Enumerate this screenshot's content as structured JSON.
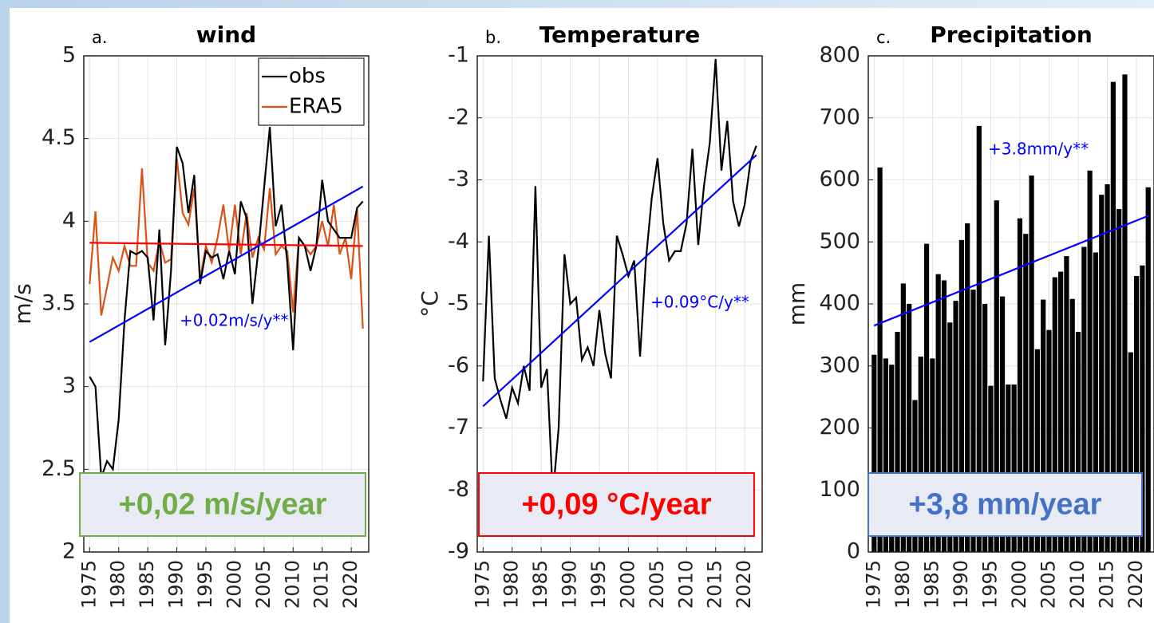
{
  "chart_data": [
    {
      "type": "line",
      "panel_label": "a.",
      "title": "wind",
      "ylabel": "m/s",
      "x": [
        1975,
        1976,
        1977,
        1978,
        1979,
        1980,
        1981,
        1982,
        1983,
        1984,
        1985,
        1986,
        1987,
        1988,
        1989,
        1990,
        1991,
        1992,
        1993,
        1994,
        1995,
        1996,
        1997,
        1998,
        1999,
        2000,
        2001,
        2002,
        2003,
        2004,
        2005,
        2006,
        2007,
        2008,
        2009,
        2010,
        2011,
        2012,
        2013,
        2014,
        2015,
        2016,
        2017,
        2018,
        2019,
        2020,
        2021,
        2022
      ],
      "series": [
        {
          "name": "obs",
          "color": "#000000",
          "values": [
            3.06,
            3.0,
            2.45,
            2.55,
            2.5,
            2.8,
            3.4,
            3.82,
            3.8,
            3.82,
            3.78,
            3.4,
            3.95,
            3.25,
            3.7,
            4.45,
            4.35,
            4.05,
            4.28,
            3.62,
            3.82,
            3.78,
            3.8,
            3.65,
            3.82,
            3.68,
            4.12,
            4.02,
            3.5,
            3.82,
            4.2,
            4.57,
            3.97,
            4.1,
            3.75,
            3.22,
            3.9,
            3.85,
            3.7,
            3.85,
            4.25,
            4.0,
            3.95,
            3.9,
            3.9,
            3.9,
            4.08,
            4.12
          ]
        },
        {
          "name": "ERA5",
          "color": "#d95319",
          "values": [
            3.62,
            4.06,
            3.43,
            3.6,
            3.78,
            3.7,
            3.85,
            3.73,
            3.73,
            4.32,
            3.75,
            3.7,
            3.88,
            3.75,
            3.77,
            4.38,
            4.05,
            3.98,
            4.2,
            3.65,
            3.85,
            3.75,
            3.9,
            4.1,
            3.82,
            4.1,
            3.8,
            4.05,
            3.78,
            3.9,
            3.83,
            4.2,
            3.8,
            3.85,
            3.82,
            3.45,
            3.9,
            3.85,
            3.8,
            3.85,
            4.0,
            3.85,
            4.1,
            3.8,
            3.9,
            3.65,
            4.08,
            3.35
          ]
        }
      ],
      "trends": [
        {
          "color": "#ff0000",
          "x": [
            1975,
            2022
          ],
          "values": [
            3.87,
            3.85
          ]
        },
        {
          "color": "#0000ff",
          "x": [
            1975,
            2022
          ],
          "values": [
            3.27,
            4.21
          ]
        }
      ],
      "annotation": "+0.02m/s/y**",
      "annotation_color": "#0000ff",
      "highlight": {
        "text": "+0,02 m/s/year",
        "color": "#70ad47"
      },
      "xlim": [
        1974,
        2023
      ],
      "xticks": [
        1975,
        1980,
        1985,
        1990,
        1995,
        2000,
        2005,
        2010,
        2015,
        2020
      ],
      "ylim": [
        2,
        5
      ],
      "yticks": [
        2,
        2.5,
        3,
        3.5,
        4,
        4.5,
        5
      ],
      "grid": true,
      "legend": "upper right"
    },
    {
      "type": "line",
      "panel_label": "b.",
      "title": "Temperature",
      "ylabel": "°C",
      "x": [
        1975,
        1976,
        1977,
        1978,
        1979,
        1980,
        1981,
        1982,
        1983,
        1984,
        1985,
        1986,
        1987,
        1988,
        1989,
        1990,
        1991,
        1992,
        1993,
        1994,
        1995,
        1996,
        1997,
        1998,
        1999,
        2000,
        2001,
        2002,
        2003,
        2004,
        2005,
        2006,
        2007,
        2008,
        2009,
        2010,
        2011,
        2012,
        2013,
        2014,
        2015,
        2016,
        2017,
        2018,
        2019,
        2020,
        2021,
        2022
      ],
      "values": [
        -6.25,
        -3.9,
        -6.2,
        -6.55,
        -6.85,
        -6.35,
        -6.6,
        -6.0,
        -6.4,
        -3.1,
        -6.35,
        -6.05,
        -8.1,
        -7.0,
        -4.2,
        -5.0,
        -4.9,
        -5.9,
        -5.7,
        -6.0,
        -5.1,
        -5.8,
        -6.2,
        -3.9,
        -4.2,
        -4.55,
        -4.3,
        -5.85,
        -4.3,
        -3.3,
        -2.65,
        -3.7,
        -4.3,
        -4.15,
        -4.15,
        -3.7,
        -2.5,
        -4.05,
        -3.1,
        -2.4,
        -1.05,
        -2.85,
        -2.05,
        -3.35,
        -3.75,
        -3.4,
        -2.7,
        -2.45
      ],
      "color": "#000000",
      "trends": [
        {
          "color": "#0000ff",
          "x": [
            1975,
            2022
          ],
          "values": [
            -6.65,
            -2.6
          ]
        }
      ],
      "annotation": "+0.09°C/y**",
      "annotation_color": "#0000ff",
      "highlight": {
        "text": "+0,09 °C/year",
        "color": "#ff0000"
      },
      "xlim": [
        1974,
        2023
      ],
      "xticks": [
        1975,
        1980,
        1985,
        1990,
        1995,
        2000,
        2005,
        2010,
        2015,
        2020
      ],
      "ylim": [
        -9,
        -1
      ],
      "yticks": [
        -9,
        -8,
        -7,
        -6,
        -5,
        -4,
        -3,
        -2,
        -1
      ],
      "grid": true
    },
    {
      "type": "bar",
      "panel_label": "c.",
      "title": "Precipitation",
      "ylabel": "mm",
      "x": [
        1975,
        1976,
        1977,
        1978,
        1979,
        1980,
        1981,
        1982,
        1983,
        1984,
        1985,
        1986,
        1987,
        1988,
        1989,
        1990,
        1991,
        1992,
        1993,
        1994,
        1995,
        1996,
        1997,
        1998,
        1999,
        2000,
        2001,
        2002,
        2003,
        2004,
        2005,
        2006,
        2007,
        2008,
        2009,
        2010,
        2011,
        2012,
        2013,
        2014,
        2015,
        2016,
        2017,
        2018,
        2019,
        2020,
        2021,
        2022
      ],
      "values": [
        318,
        620,
        312,
        302,
        355,
        433,
        400,
        245,
        315,
        497,
        312,
        448,
        438,
        370,
        405,
        503,
        530,
        423,
        687,
        400,
        268,
        567,
        412,
        270,
        270,
        538,
        513,
        607,
        327,
        407,
        358,
        443,
        452,
        477,
        408,
        355,
        492,
        615,
        483,
        576,
        593,
        758,
        553,
        770,
        322,
        445,
        462,
        588
      ],
      "color": "#000000",
      "trends": [
        {
          "color": "#0000ff",
          "x": [
            1975,
            2022
          ],
          "values": [
            365,
            542
          ]
        }
      ],
      "annotation": "+3.8mm/y**",
      "annotation_color": "#0000ff",
      "highlight": {
        "text": "+3,8 mm/year",
        "color": "#4472c4"
      },
      "xlim": [
        1974,
        2023
      ],
      "xticks": [
        1975,
        1980,
        1985,
        1990,
        1995,
        2000,
        2005,
        2010,
        2015,
        2020
      ],
      "ylim": [
        0,
        800
      ],
      "yticks": [
        0,
        100,
        200,
        300,
        400,
        500,
        600,
        700,
        800
      ],
      "grid": true
    }
  ]
}
